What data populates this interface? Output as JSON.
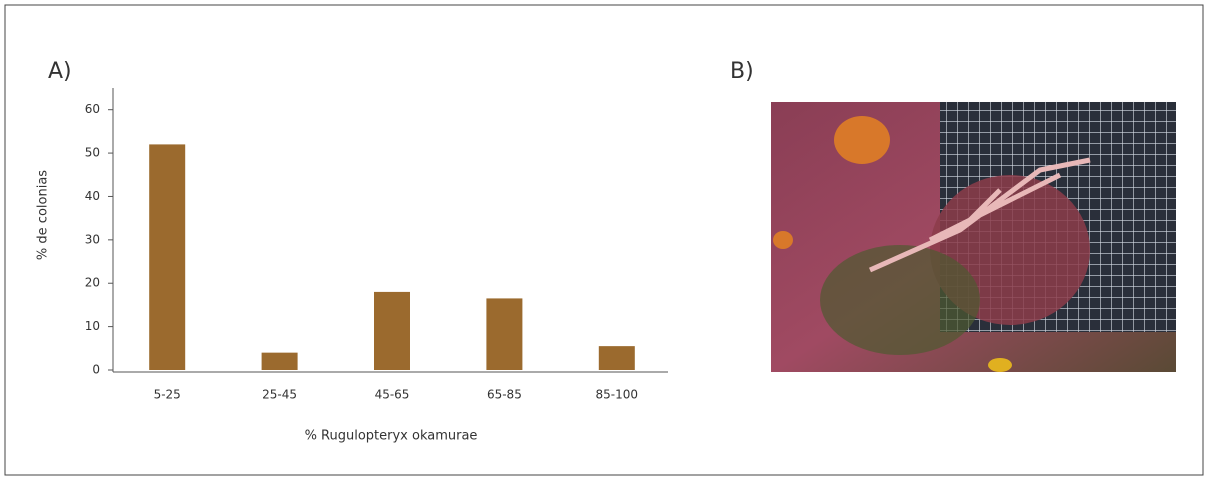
{
  "chart_data": {
    "type": "bar",
    "panel_label": "A)",
    "ylabel": "% de colonias",
    "xlabel": "% Rugulopteryx okamurae",
    "categories": [
      "5-25",
      "25-45",
      "45-65",
      "65-85",
      "85-100"
    ],
    "values": [
      52,
      4,
      18,
      16.5,
      5.5
    ],
    "color": "#9b6a2e",
    "ylim": [
      0,
      65
    ],
    "yticks": [
      0,
      10,
      20,
      30,
      40,
      50,
      60
    ],
    "grid": false
  },
  "panel_b": {
    "label": "B)"
  }
}
